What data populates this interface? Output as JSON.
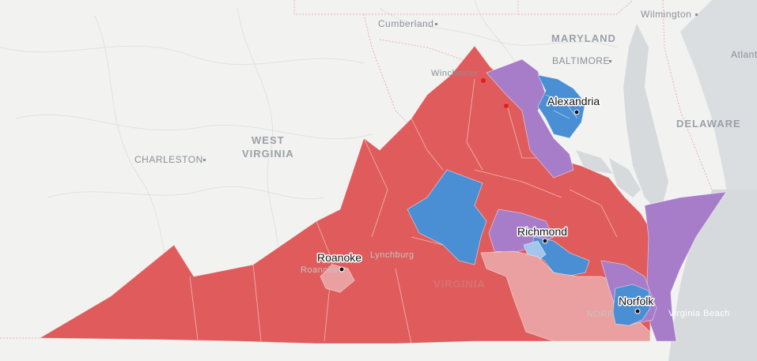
{
  "map": {
    "state_labels": {
      "maryland": "MARYLAND",
      "west_virginia_line1": "WEST",
      "west_virginia_line2": "VIRGINIA",
      "delaware": "DELAWARE",
      "virginia": "VIRGINIA"
    },
    "base_cities": {
      "cumberland": "Cumberland",
      "baltimore": "BALTIMORE",
      "wilmington": "Wilmington",
      "atlantic": "Atlant",
      "charleston": "CHARLESTON",
      "winchester": "Winchester",
      "virginia_beach": "Virginia Beach",
      "roanoke_faded": "Roanoke",
      "lynchburg_faded": "Lynchburg",
      "norfolk_faded": "NORF"
    },
    "markers": {
      "alexandria": "Alexandria",
      "richmond": "Richmond",
      "roanoke": "Roanoke",
      "norfolk": "Norfolk"
    },
    "colors": {
      "strong_republican": "#e05c5c",
      "lean_republican": "#eaa0a0",
      "strong_democrat": "#4a8fd4",
      "lean_democrat": "#a3c6ea",
      "tossup": "#a77cc8",
      "water": "#d7dadd",
      "land": "#f2f2f1"
    }
  }
}
